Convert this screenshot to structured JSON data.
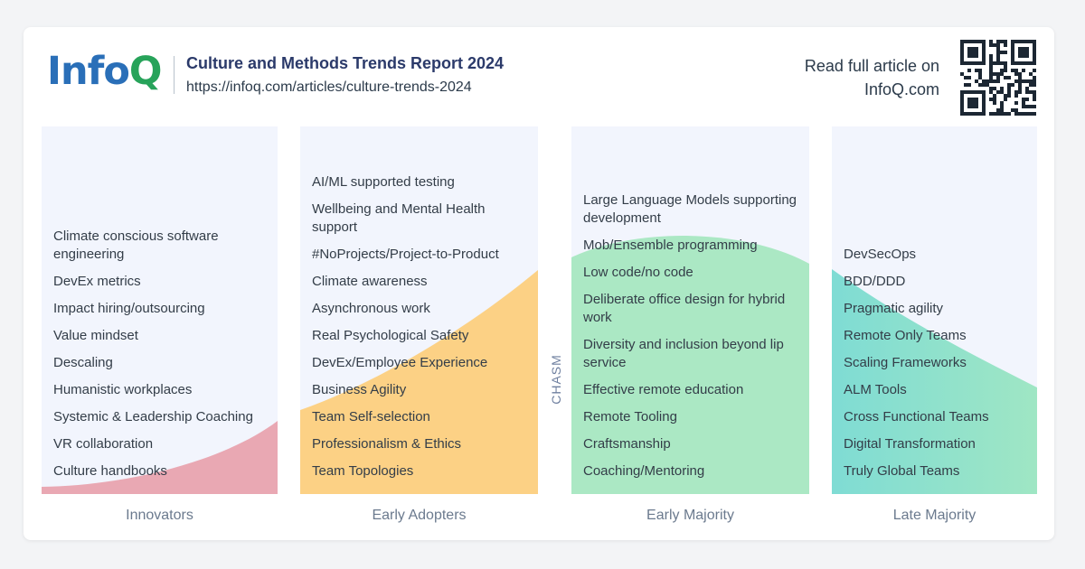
{
  "header": {
    "logo_text_info": "Info",
    "logo_text_q": "Q",
    "title": "Culture and Methods Trends Report 2024",
    "url": "https://infoq.com/articles/culture-trends-2024",
    "cta_line1": "Read full article on",
    "cta_line2": "InfoQ.com"
  },
  "chasm_label": "CHASM",
  "colors": {
    "innovators": "#e9a8b3",
    "early_adopters": "#fcd185",
    "early_majority": "#abe8c4",
    "late_majority_start": "#7fdcd4",
    "late_majority_end": "#9fe6c4",
    "column_bg": "#f2f5fd"
  },
  "columns": [
    {
      "name": "Innovators",
      "items": [
        "Climate conscious software engineering",
        "DevEx metrics",
        "Impact hiring/outsourcing",
        "Value mindset",
        "Descaling",
        "Humanistic workplaces",
        "Systemic & Leadership Coaching",
        "VR collaboration",
        "Culture handbooks"
      ]
    },
    {
      "name": "Early Adopters",
      "items": [
        "AI/ML supported testing",
        "Wellbeing and Mental Health support",
        "#NoProjects/Project-to-Product",
        "Climate awareness",
        "Asynchronous work",
        "Real Psychological Safety",
        "DevEx/Employee Experience",
        "Business Agility",
        "Team Self-selection",
        "Professionalism & Ethics",
        "Team Topologies"
      ]
    },
    {
      "name": "Early Majority",
      "items": [
        "Large Language Models supporting development",
        "Mob/Ensemble programming",
        "Low code/no code",
        "Deliberate office design for hybrid work",
        "Diversity and inclusion beyond lip service",
        "Effective remote education",
        "Remote Tooling",
        "Craftsmanship",
        "Coaching/Mentoring"
      ]
    },
    {
      "name": "Late Majority",
      "items": [
        "DevSecOps",
        "BDD/DDD",
        "Pragmatic agility",
        "Remote Only Teams",
        "Scaling Frameworks",
        "ALM Tools",
        "Cross Functional Teams",
        "Digital Transformation",
        "Truly Global Teams"
      ]
    }
  ]
}
